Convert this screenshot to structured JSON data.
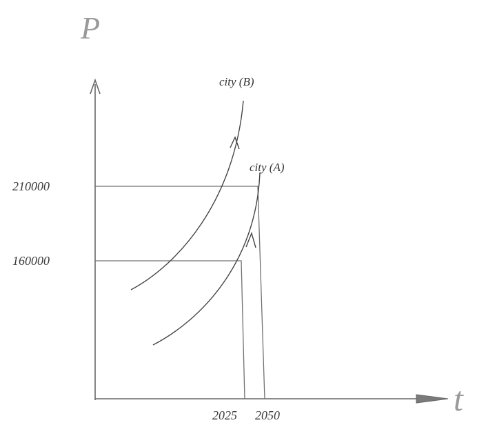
{
  "chart_data": {
    "type": "line",
    "title": "",
    "xlabel": "t",
    "ylabel": "P",
    "x_ticks": [
      "2025",
      "2050"
    ],
    "y_ticks": [
      "160000",
      "210000"
    ],
    "grid": false,
    "legend": "none",
    "series": [
      {
        "name": "city (A)",
        "target_year": 2050,
        "target_value": 210000
      },
      {
        "name": "city (B)",
        "target_year": 2025,
        "target_value": 210000
      }
    ],
    "reference_points": [
      {
        "x": "2025",
        "y": "160000"
      },
      {
        "x": "2050",
        "y": "210000"
      }
    ]
  }
}
